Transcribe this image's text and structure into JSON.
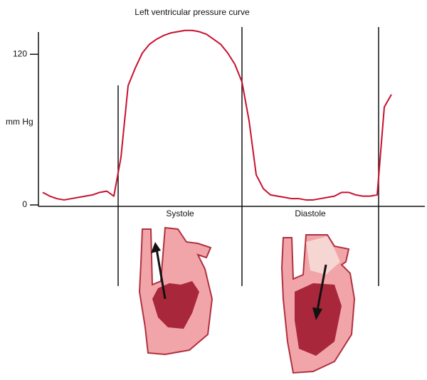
{
  "chart_data": {
    "type": "line",
    "title": "Left ventricular pressure curve",
    "ylabel": "mm Hg",
    "categories": [
      null,
      null,
      null,
      null,
      null,
      null,
      null,
      null,
      null,
      null,
      null,
      null,
      null,
      null,
      null,
      null,
      null,
      null,
      null,
      null,
      null,
      null,
      null,
      null,
      null,
      null,
      null,
      null,
      null,
      null,
      null,
      null,
      null,
      null,
      null,
      null,
      null,
      null,
      null,
      null,
      null,
      null,
      null,
      null,
      null,
      null,
      null,
      null,
      null,
      null
    ],
    "values": [
      10,
      7,
      5,
      4,
      5,
      6,
      7,
      8,
      10,
      11,
      7,
      38,
      95,
      109,
      121,
      128,
      132,
      135,
      137,
      138,
      139,
      139,
      138,
      136,
      132,
      128,
      121,
      112,
      98,
      67,
      24,
      13,
      8,
      7,
      6,
      5,
      5,
      4,
      4,
      5,
      6,
      7,
      10,
      10,
      8,
      7,
      7,
      8,
      78,
      88
    ],
    "color": "#c8102e",
    "ylim": [
      0,
      140
    ],
    "yticks": [
      0,
      120
    ],
    "annotations": [
      "Systole",
      "Diastole"
    ]
  }
}
